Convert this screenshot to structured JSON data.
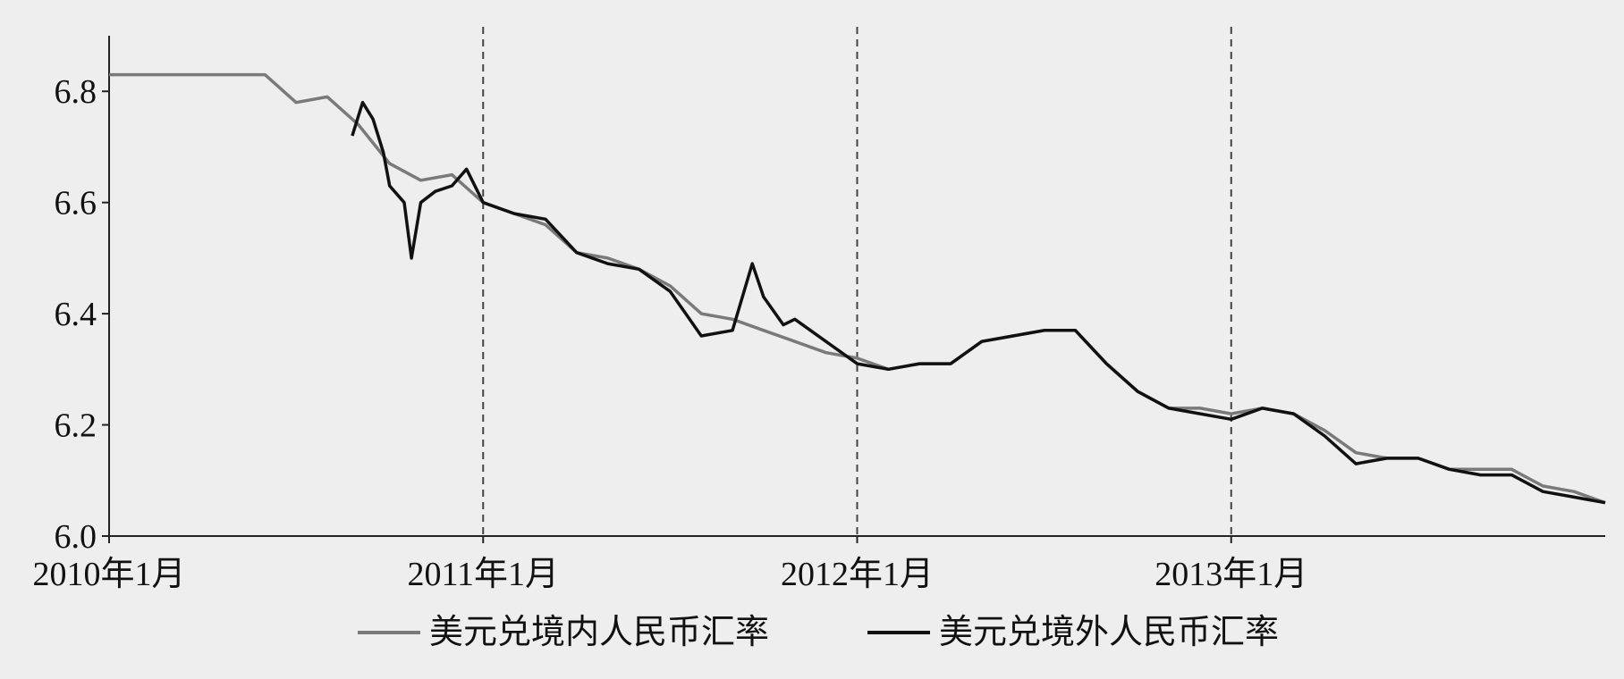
{
  "chart_data": {
    "type": "line",
    "title": "",
    "xlabel": "",
    "ylabel": "",
    "y_ticks": [
      "6.0",
      "6.2",
      "6.4",
      "6.6",
      "6.8"
    ],
    "y_tick_values": [
      6.0,
      6.2,
      6.4,
      6.6,
      6.8
    ],
    "ylim": [
      6.0,
      6.9
    ],
    "xlim": [
      "2010-01",
      "2014-01"
    ],
    "x_ticks": [
      {
        "label": "2010年1月",
        "date": "2010-01",
        "gridline": false
      },
      {
        "label": "2011年1月",
        "date": "2011-01",
        "gridline": true
      },
      {
        "label": "2012年1月",
        "date": "2012-01",
        "gridline": true
      },
      {
        "label": "2013年1月",
        "date": "2013-01",
        "gridline": true
      }
    ],
    "legend_position": "bottom",
    "grid": "dashed vertical lines at yearly ticks",
    "series": [
      {
        "name": "美元兑境内人民币汇率",
        "color": "#7a7a7a",
        "points": [
          [
            "2010-01",
            6.83
          ],
          [
            "2010-02",
            6.83
          ],
          [
            "2010-03",
            6.83
          ],
          [
            "2010-04",
            6.83
          ],
          [
            "2010-05",
            6.83
          ],
          [
            "2010-06",
            6.83
          ],
          [
            "2010-07",
            6.78
          ],
          [
            "2010-08",
            6.79
          ],
          [
            "2010-09",
            6.74
          ],
          [
            "2010-10",
            6.67
          ],
          [
            "2010-11",
            6.64
          ],
          [
            "2010-12",
            6.65
          ],
          [
            "2011-01",
            6.6
          ],
          [
            "2011-02",
            6.58
          ],
          [
            "2011-03",
            6.56
          ],
          [
            "2011-04",
            6.51
          ],
          [
            "2011-05",
            6.5
          ],
          [
            "2011-06",
            6.48
          ],
          [
            "2011-07",
            6.45
          ],
          [
            "2011-08",
            6.4
          ],
          [
            "2011-09",
            6.39
          ],
          [
            "2011-10",
            6.37
          ],
          [
            "2011-11",
            6.35
          ],
          [
            "2011-12",
            6.33
          ],
          [
            "2012-01",
            6.32
          ],
          [
            "2012-02",
            6.3
          ],
          [
            "2012-03",
            6.31
          ],
          [
            "2012-04",
            6.31
          ],
          [
            "2012-05",
            6.35
          ],
          [
            "2012-06",
            6.36
          ],
          [
            "2012-07",
            6.37
          ],
          [
            "2012-08",
            6.37
          ],
          [
            "2012-09",
            6.31
          ],
          [
            "2012-10",
            6.26
          ],
          [
            "2012-11",
            6.23
          ],
          [
            "2012-12",
            6.23
          ],
          [
            "2013-01",
            6.22
          ],
          [
            "2013-02",
            6.23
          ],
          [
            "2013-03",
            6.22
          ],
          [
            "2013-04",
            6.19
          ],
          [
            "2013-05",
            6.15
          ],
          [
            "2013-06",
            6.14
          ],
          [
            "2013-07",
            6.14
          ],
          [
            "2013-08",
            6.12
          ],
          [
            "2013-09",
            6.12
          ],
          [
            "2013-10",
            6.12
          ],
          [
            "2013-11",
            6.09
          ],
          [
            "2013-12",
            6.08
          ],
          [
            "2014-01",
            6.06
          ]
        ]
      },
      {
        "name": "美元兑境外人民币汇率",
        "color": "#111111",
        "points": [
          [
            "2010-08-25",
            6.72
          ],
          [
            "2010-09-05",
            6.78
          ],
          [
            "2010-09-15",
            6.75
          ],
          [
            "2010-09-25",
            6.69
          ],
          [
            "2010-10-01",
            6.63
          ],
          [
            "2010-10-15",
            6.6
          ],
          [
            "2010-10-22",
            6.5
          ],
          [
            "2010-11-01",
            6.6
          ],
          [
            "2010-11-15",
            6.62
          ],
          [
            "2010-12-01",
            6.63
          ],
          [
            "2010-12-15",
            6.66
          ],
          [
            "2011-01-01",
            6.6
          ],
          [
            "2011-02",
            6.58
          ],
          [
            "2011-03",
            6.57
          ],
          [
            "2011-04",
            6.51
          ],
          [
            "2011-05",
            6.49
          ],
          [
            "2011-06",
            6.48
          ],
          [
            "2011-07",
            6.44
          ],
          [
            "2011-08",
            6.36
          ],
          [
            "2011-09-01",
            6.37
          ],
          [
            "2011-09-20",
            6.49
          ],
          [
            "2011-10-01",
            6.43
          ],
          [
            "2011-10-20",
            6.38
          ],
          [
            "2011-11",
            6.39
          ],
          [
            "2011-12",
            6.35
          ],
          [
            "2012-01",
            6.31
          ],
          [
            "2012-02",
            6.3
          ],
          [
            "2012-03",
            6.31
          ],
          [
            "2012-04",
            6.31
          ],
          [
            "2012-05",
            6.35
          ],
          [
            "2012-06",
            6.36
          ],
          [
            "2012-07",
            6.37
          ],
          [
            "2012-08",
            6.37
          ],
          [
            "2012-09",
            6.31
          ],
          [
            "2012-10",
            6.26
          ],
          [
            "2012-11",
            6.23
          ],
          [
            "2012-12",
            6.22
          ],
          [
            "2013-01",
            6.21
          ],
          [
            "2013-02",
            6.23
          ],
          [
            "2013-03",
            6.22
          ],
          [
            "2013-04",
            6.18
          ],
          [
            "2013-05",
            6.13
          ],
          [
            "2013-06",
            6.14
          ],
          [
            "2013-07",
            6.14
          ],
          [
            "2013-08",
            6.12
          ],
          [
            "2013-09",
            6.11
          ],
          [
            "2013-10",
            6.11
          ],
          [
            "2013-11",
            6.08
          ],
          [
            "2013-12",
            6.07
          ],
          [
            "2014-01",
            6.06
          ]
        ]
      }
    ]
  }
}
